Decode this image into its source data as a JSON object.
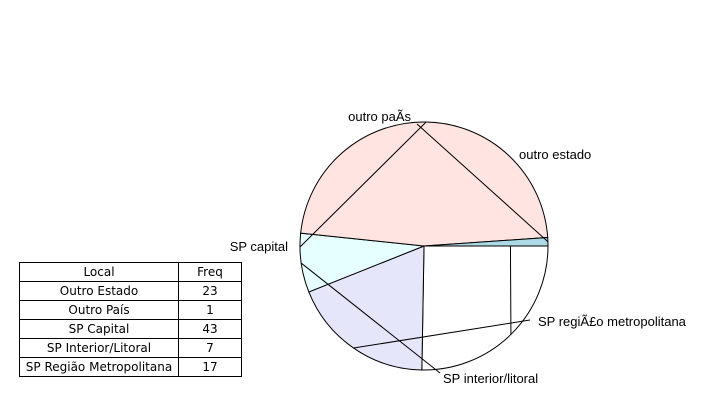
{
  "chart_data": {
    "type": "pie",
    "slices": [
      {
        "label": "outro estado",
        "value": 23,
        "color": "#ffffff"
      },
      {
        "label": "SP regiÃ£o metropolitana",
        "value": 17,
        "color": "#e6e6fa"
      },
      {
        "label": "SP interior/litoral",
        "value": 7,
        "color": "#e6ffff"
      },
      {
        "label": "SP capital",
        "value": 43,
        "color": "#ffe4e1"
      },
      {
        "label": "outro paÃ­s",
        "value": 1,
        "color": "#add8e6"
      }
    ],
    "start_angle_deg": 0,
    "direction": "clockwise",
    "outline_color": "#000000"
  },
  "table": {
    "headers": [
      "Local",
      "Freq"
    ],
    "rows": [
      {
        "local": "Outro Estado",
        "freq": "23"
      },
      {
        "local": "Outro País",
        "freq": "1"
      },
      {
        "local": "SP Capital",
        "freq": "43"
      },
      {
        "local": "SP Interior/Litoral",
        "freq": "7"
      },
      {
        "local": "SP Região Metropolitana",
        "freq": "17"
      }
    ]
  }
}
